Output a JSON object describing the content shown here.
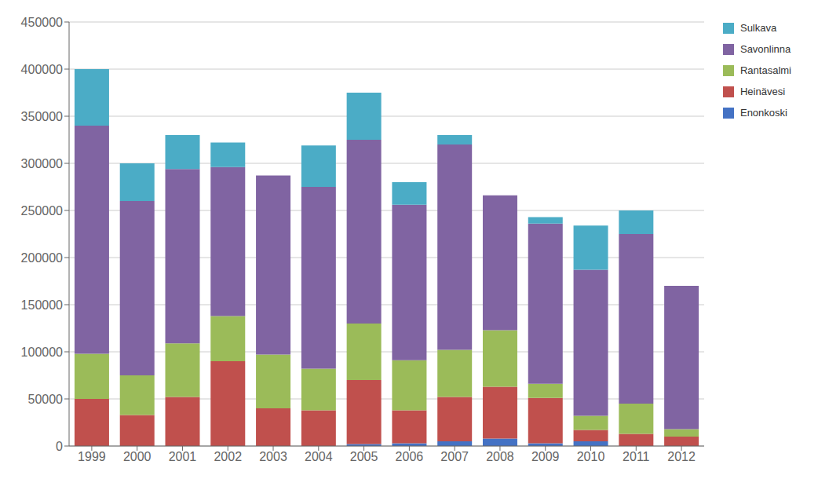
{
  "chart_data": {
    "type": "bar",
    "stacked": true,
    "categories": [
      "1999",
      "2000",
      "2001",
      "2002",
      "2003",
      "2004",
      "2005",
      "2006",
      "2007",
      "2008",
      "2009",
      "2010",
      "2011",
      "2012"
    ],
    "series": [
      {
        "name": "Enonkoski",
        "color": "#4472C4",
        "values": [
          0,
          0,
          0,
          0,
          0,
          0,
          2000,
          3000,
          5000,
          8000,
          3000,
          5000,
          0,
          0
        ]
      },
      {
        "name": "Heinävesi",
        "color": "#C0504D",
        "values": [
          50000,
          33000,
          52000,
          90000,
          40000,
          38000,
          68000,
          35000,
          47000,
          55000,
          48000,
          12000,
          13000,
          10000
        ]
      },
      {
        "name": "Rantasalmi",
        "color": "#9BBB59",
        "values": [
          48000,
          42000,
          57000,
          48000,
          57000,
          44000,
          60000,
          53000,
          50000,
          60000,
          15000,
          15000,
          32000,
          8000
        ]
      },
      {
        "name": "Savonlinna",
        "color": "#8064A2",
        "values": [
          242000,
          185000,
          185000,
          158000,
          190000,
          193000,
          195000,
          165000,
          218000,
          143000,
          170000,
          155000,
          180000,
          152000
        ]
      },
      {
        "name": "Sulkava",
        "color": "#4BACC6",
        "values": [
          60000,
          40000,
          36000,
          26000,
          0,
          44000,
          50000,
          24000,
          10000,
          0,
          7000,
          47000,
          25000,
          0
        ]
      }
    ],
    "ylim": [
      0,
      450000
    ],
    "yticks": [
      0,
      50000,
      100000,
      150000,
      200000,
      250000,
      300000,
      350000,
      400000,
      450000
    ],
    "grid": true,
    "legend": "right"
  }
}
